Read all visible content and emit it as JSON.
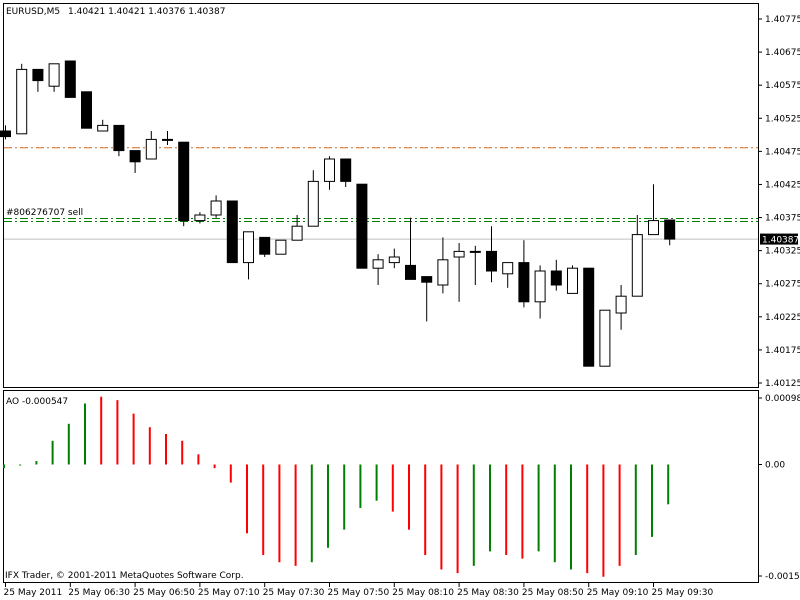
{
  "header": {
    "symbol": "EURUSD,M5",
    "ohlc": "1.40421 1.40421 1.40376 1.40387"
  },
  "price_panel": {
    "order_label": "#806276707 sell",
    "current_price": "1.40387",
    "ticks": [
      "1.40775",
      "1.40675",
      "1.40575",
      "1.40525",
      "1.40475",
      "1.40425",
      "1.40375",
      "1.40325",
      "1.40275",
      "1.40225",
      "1.40175",
      "1.40125"
    ]
  },
  "ao_panel": {
    "label": "AO -0.000547",
    "ticks": [
      "0.000981",
      "0.00",
      "-0.00154"
    ]
  },
  "time_axis": [
    "25 May 2011",
    "25 May 06:30",
    "25 May 06:50",
    "25 May 07:10",
    "25 May 07:30",
    "25 May 07:50",
    "25 May 08:10",
    "25 May 08:30",
    "25 May 08:50",
    "25 May 09:10",
    "25 May 09:30"
  ],
  "footer": "IFX Trader, © 2001-2011 MetaQuotes Software Corp.",
  "colors": {
    "up_bar": "#ffffff",
    "down_bar": "#000000",
    "ao_up": "#008000",
    "ao_down": "#ff0000",
    "order_line": "#008000",
    "level_line": "#d2691e",
    "current_line": "#c0c0c0"
  },
  "chart_data": [
    {
      "type": "candlestick",
      "title": "EURUSD,M5",
      "ylim": [
        1.4011,
        1.4081
      ],
      "lines": {
        "order_level": 1.40421,
        "dashdot_level": 1.4055,
        "current_price": 1.40387
      },
      "candles": [
        {
          "o": 1.4058,
          "h": 1.4059,
          "l": 1.40565,
          "c": 1.4057
        },
        {
          "o": 1.40575,
          "h": 1.407,
          "l": 1.40575,
          "c": 1.4069
        },
        {
          "o": 1.4069,
          "h": 1.4069,
          "l": 1.4065,
          "c": 1.4067
        },
        {
          "o": 1.4066,
          "h": 1.407,
          "l": 1.4065,
          "c": 1.407
        },
        {
          "o": 1.40705,
          "h": 1.40705,
          "l": 1.4064,
          "c": 1.4064
        },
        {
          "o": 1.4065,
          "h": 1.4065,
          "l": 1.40585,
          "c": 1.40585
        },
        {
          "o": 1.4058,
          "h": 1.406,
          "l": 1.4058,
          "c": 1.4059
        },
        {
          "o": 1.4059,
          "h": 1.4059,
          "l": 1.40535,
          "c": 1.40545
        },
        {
          "o": 1.40545,
          "h": 1.40545,
          "l": 1.40505,
          "c": 1.40525
        },
        {
          "o": 1.4053,
          "h": 1.4058,
          "l": 1.4053,
          "c": 1.40565
        },
        {
          "o": 1.40565,
          "h": 1.4058,
          "l": 1.40555,
          "c": 1.40565
        },
        {
          "o": 1.4056,
          "h": 1.4056,
          "l": 1.4041,
          "c": 1.4042
        },
        {
          "o": 1.4042,
          "h": 1.40435,
          "l": 1.40415,
          "c": 1.4043
        },
        {
          "o": 1.4043,
          "h": 1.40465,
          "l": 1.40425,
          "c": 1.40455
        },
        {
          "o": 1.40455,
          "h": 1.40455,
          "l": 1.40345,
          "c": 1.40345
        },
        {
          "o": 1.40345,
          "h": 1.404,
          "l": 1.40315,
          "c": 1.404
        },
        {
          "o": 1.4039,
          "h": 1.4039,
          "l": 1.40355,
          "c": 1.4036
        },
        {
          "o": 1.4036,
          "h": 1.40385,
          "l": 1.4036,
          "c": 1.40385
        },
        {
          "o": 1.40385,
          "h": 1.4043,
          "l": 1.40385,
          "c": 1.4041
        },
        {
          "o": 1.4041,
          "h": 1.4051,
          "l": 1.4041,
          "c": 1.4049
        },
        {
          "o": 1.4049,
          "h": 1.40535,
          "l": 1.40475,
          "c": 1.4053
        },
        {
          "o": 1.4053,
          "h": 1.4053,
          "l": 1.4048,
          "c": 1.4049
        },
        {
          "o": 1.40485,
          "h": 1.40485,
          "l": 1.40335,
          "c": 1.40335
        },
        {
          "o": 1.40335,
          "h": 1.4036,
          "l": 1.40305,
          "c": 1.4035
        },
        {
          "o": 1.40345,
          "h": 1.4037,
          "l": 1.40335,
          "c": 1.40355
        },
        {
          "o": 1.4034,
          "h": 1.40425,
          "l": 1.40315,
          "c": 1.40315
        },
        {
          "o": 1.4032,
          "h": 1.4032,
          "l": 1.4024,
          "c": 1.4031
        },
        {
          "o": 1.40305,
          "h": 1.4039,
          "l": 1.4029,
          "c": 1.4035
        },
        {
          "o": 1.40355,
          "h": 1.4038,
          "l": 1.40275,
          "c": 1.40365
        },
        {
          "o": 1.40365,
          "h": 1.40375,
          "l": 1.40305,
          "c": 1.40365
        },
        {
          "o": 1.40365,
          "h": 1.4041,
          "l": 1.4031,
          "c": 1.4033
        },
        {
          "o": 1.40325,
          "h": 1.40345,
          "l": 1.403,
          "c": 1.40345
        },
        {
          "o": 1.40345,
          "h": 1.40385,
          "l": 1.40265,
          "c": 1.40275
        },
        {
          "o": 1.40275,
          "h": 1.4034,
          "l": 1.40245,
          "c": 1.4033
        },
        {
          "o": 1.4033,
          "h": 1.4035,
          "l": 1.40295,
          "c": 1.40305
        },
        {
          "o": 1.4029,
          "h": 1.4034,
          "l": 1.4029,
          "c": 1.40335
        },
        {
          "o": 1.40335,
          "h": 1.40335,
          "l": 1.4016,
          "c": 1.4016
        },
        {
          "o": 1.4016,
          "h": 1.4026,
          "l": 1.4016,
          "c": 1.4026
        },
        {
          "o": 1.40255,
          "h": 1.40305,
          "l": 1.40225,
          "c": 1.40285
        },
        {
          "o": 1.40285,
          "h": 1.4043,
          "l": 1.40285,
          "c": 1.40395
        },
        {
          "o": 1.40395,
          "h": 1.40485,
          "l": 1.40395,
          "c": 1.4042
        },
        {
          "o": 1.40421,
          "h": 1.40421,
          "l": 1.40376,
          "c": 1.40387
        }
      ]
    },
    {
      "type": "bar",
      "title": "AO -0.000547",
      "ylim": [
        -0.00154,
        0.000981
      ],
      "values": [
        -5e-05,
        0.0,
        5e-05,
        0.00035,
        0.0006,
        0.0009,
        0.001,
        0.00095,
        0.00075,
        0.00055,
        0.00045,
        0.00035,
        0.00015,
        -5e-05,
        -0.00025,
        -0.00095,
        -0.00125,
        -0.00135,
        -0.0014,
        -0.00135,
        -0.00115,
        -0.0009,
        -0.0006,
        -0.0005,
        -0.00065,
        -0.0009,
        -0.00125,
        -0.00145,
        -0.0015,
        -0.0014,
        -0.0012,
        -0.00125,
        -0.0013,
        -0.0012,
        -0.00135,
        -0.00145,
        -0.0015,
        -0.00155,
        -0.0014,
        -0.00125,
        -0.001,
        -0.00055
      ],
      "colors": [
        "up",
        "up",
        "up",
        "up",
        "up",
        "up",
        "down",
        "down",
        "down",
        "down",
        "down",
        "down",
        "down",
        "down",
        "down",
        "down",
        "down",
        "down",
        "down",
        "up",
        "up",
        "up",
        "up",
        "up",
        "down",
        "down",
        "down",
        "down",
        "down",
        "up",
        "up",
        "down",
        "down",
        "up",
        "up",
        "up",
        "down",
        "down",
        "down",
        "up",
        "up",
        "up"
      ]
    }
  ]
}
